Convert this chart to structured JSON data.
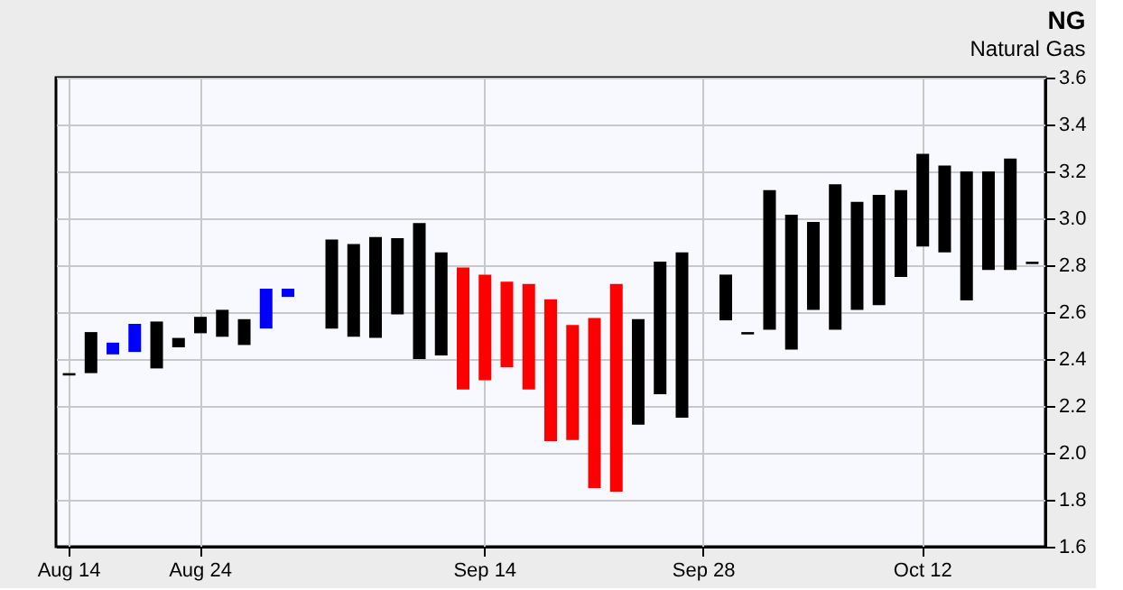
{
  "chart_data": {
    "type": "bar",
    "title": "NG",
    "subtitle": "Natural Gas",
    "categories": [
      "Aug 14",
      null,
      null,
      null,
      null,
      null,
      "Aug 24",
      null,
      null,
      null,
      null,
      null,
      null,
      null,
      null,
      null,
      null,
      null,
      null,
      "Sep 14",
      null,
      null,
      null,
      null,
      null,
      null,
      null,
      null,
      null,
      "Sep 28",
      null,
      null,
      null,
      null,
      null,
      null,
      null,
      null,
      null,
      "Oct 12",
      null,
      null,
      null,
      null,
      null
    ],
    "base": [
      2.33,
      2.34,
      2.42,
      2.43,
      2.36,
      2.45,
      2.51,
      2.495,
      2.46,
      2.53,
      2.665,
      null,
      2.53,
      2.495,
      2.49,
      2.59,
      2.4,
      2.415,
      2.27,
      2.31,
      2.365,
      2.27,
      2.05,
      2.055,
      1.85,
      1.835,
      2.12,
      2.25,
      2.15,
      null,
      2.565,
      2.505,
      2.525,
      2.44,
      2.61,
      2.525,
      2.61,
      2.63,
      2.75,
      2.88,
      2.855,
      2.65,
      2.78,
      2.78,
      2.805
    ],
    "values": [
      0.01,
      0.175,
      0.05,
      0.12,
      0.2,
      0.04,
      0.07,
      0.115,
      0.11,
      0.17,
      0.035,
      null,
      0.38,
      0.395,
      0.43,
      0.325,
      0.58,
      0.44,
      0.52,
      0.45,
      0.365,
      0.45,
      0.605,
      0.49,
      0.725,
      0.885,
      0.45,
      0.565,
      0.705,
      null,
      0.195,
      0.01,
      0.595,
      0.575,
      0.375,
      0.62,
      0.46,
      0.47,
      0.37,
      0.395,
      0.37,
      0.55,
      0.42,
      0.475,
      0.01
    ],
    "colors": [
      "#000000",
      "#000000",
      "#0000ff",
      "#0000ff",
      "#000000",
      "#000000",
      "#000000",
      "#000000",
      "#000000",
      "#0000ff",
      "#0000ff",
      null,
      "#000000",
      "#000000",
      "#000000",
      "#000000",
      "#000000",
      "#000000",
      "#ff0000",
      "#ff0000",
      "#ff0000",
      "#ff0000",
      "#ff0000",
      "#ff0000",
      "#ff0000",
      "#ff0000",
      "#000000",
      "#000000",
      "#000000",
      null,
      "#000000",
      "#000000",
      "#000000",
      "#000000",
      "#000000",
      "#000000",
      "#000000",
      "#000000",
      "#000000",
      "#000000",
      "#000000",
      "#000000",
      "#000000",
      "#000000",
      "#000000"
    ],
    "ylim": [
      1.6,
      3.6
    ],
    "yticks": [
      1.6,
      1.8,
      {
        "value": 2,
        "label": "2.0"
      },
      2.2,
      2.4,
      2.6,
      2.8,
      {
        "value": 3,
        "label": "3.0"
      },
      3.2,
      3.4,
      3.6
    ],
    "grid": true
  }
}
